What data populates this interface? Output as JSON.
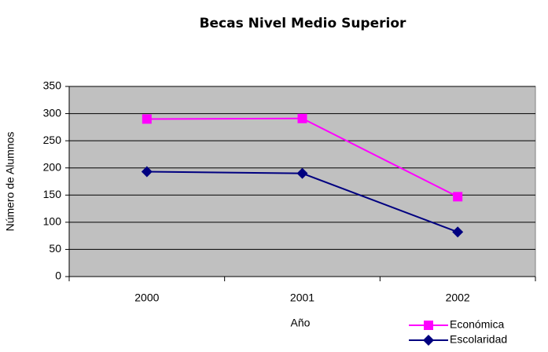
{
  "chart_data": {
    "type": "line",
    "title": "Becas Nivel Medio Superior",
    "x_label": "Año",
    "y_label": "Número de Alumnos",
    "categories": [
      "2000",
      "2001",
      "2002"
    ],
    "series": [
      {
        "name": "Económica",
        "color": "#ff00ff",
        "marker": "square",
        "values": [
          290,
          291,
          147
        ]
      },
      {
        "name": "Escolaridad",
        "color": "#000080",
        "marker": "diamond",
        "values": [
          193,
          190,
          82
        ]
      }
    ],
    "ylim": [
      0,
      350
    ],
    "yticks": [
      0,
      50,
      100,
      150,
      200,
      250,
      300,
      350
    ],
    "grid": true,
    "plot_background": "#c0c0c0",
    "legend": "lower right"
  }
}
